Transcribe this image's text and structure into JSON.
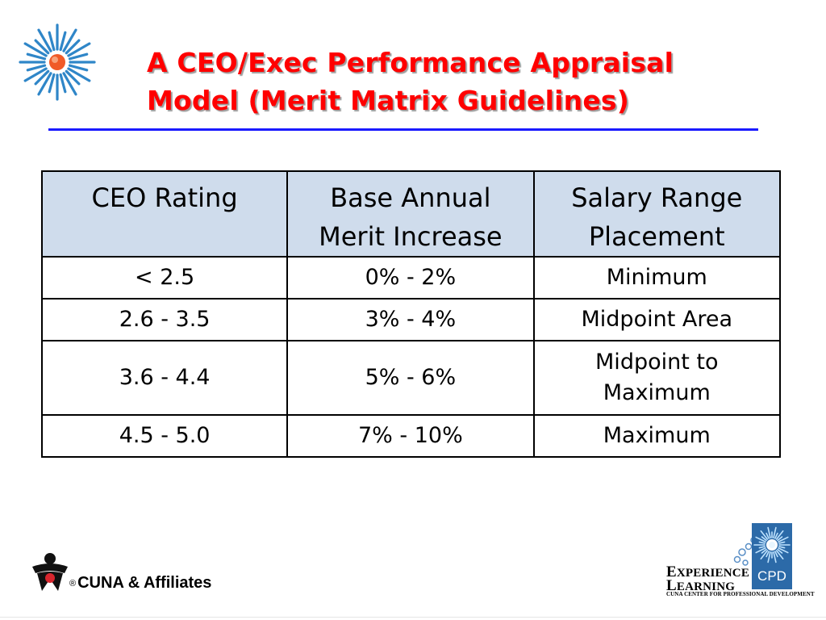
{
  "title": {
    "line1": "A CEO/Exec Performance Appraisal",
    "line2": "Model (Merit Matrix Guidelines)"
  },
  "table": {
    "headers": {
      "rating": "CEO Rating",
      "merit_l1": "Base Annual",
      "merit_l2": "Merit Increase",
      "range_l1": "Salary Range",
      "range_l2": "Placement"
    },
    "rows": [
      {
        "rating": "< 2.5",
        "merit": "0% - 2%",
        "placement": "Minimum"
      },
      {
        "rating": "2.6 - 3.5",
        "merit": "3% - 4%",
        "placement": "Midpoint Area"
      },
      {
        "rating": "3.6 - 4.4",
        "merit": "5% - 6%",
        "placement_l1": "Midpoint to",
        "placement_l2": "Maximum"
      },
      {
        "rating": "4.5 - 5.0",
        "merit": "7% - 10%",
        "placement": "Maximum"
      }
    ]
  },
  "footer": {
    "cuna": {
      "registered": "®",
      "name": "CUNA & Affiliates"
    },
    "experience_learning": {
      "e_initial": "E",
      "e_rest": "XPERIENCE",
      "l_initial": "L",
      "l_rest": "EARNING",
      "sub": "CUNA CENTER FOR PROFESSIONAL DEVELOPMENT",
      "cpd": "CPD"
    }
  },
  "colors": {
    "title": "#ff0000",
    "rule": "#1a1aff",
    "header_fill": "#cfdcec",
    "burst": "#2f86c8",
    "burst_center": "#f05a28",
    "cpd_box": "#2c6aa8"
  },
  "icons": {
    "top_logo": "starburst-icon",
    "cuna_logo": "cuna-logo-icon",
    "cpd_logo": "cpd-starburst-icon"
  }
}
